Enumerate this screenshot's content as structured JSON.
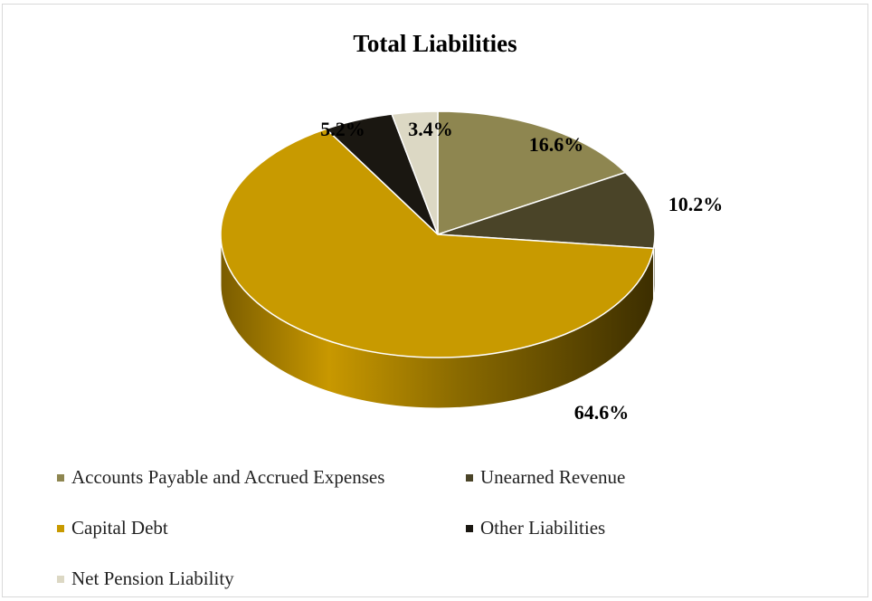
{
  "chart_data": {
    "type": "pie",
    "title": "Total Liabilities",
    "slices": [
      {
        "name": "Accounts Payable and Accrued Expenses",
        "value": 16.6,
        "label": "16.6%",
        "color": "#8e8650"
      },
      {
        "name": "Unearned Revenue",
        "value": 10.2,
        "label": "10.2%",
        "color": "#4a4428"
      },
      {
        "name": "Capital Debt",
        "value": 64.6,
        "label": "64.6%",
        "color": "#c89a00"
      },
      {
        "name": "Other Liabilities",
        "value": 5.2,
        "label": "5.2%",
        "color": "#1a1711"
      },
      {
        "name": "Net Pension Liability",
        "value": 3.4,
        "label": "3.4%",
        "color": "#dcd8c4"
      }
    ],
    "legend_position": "bottom",
    "style": "3d"
  }
}
